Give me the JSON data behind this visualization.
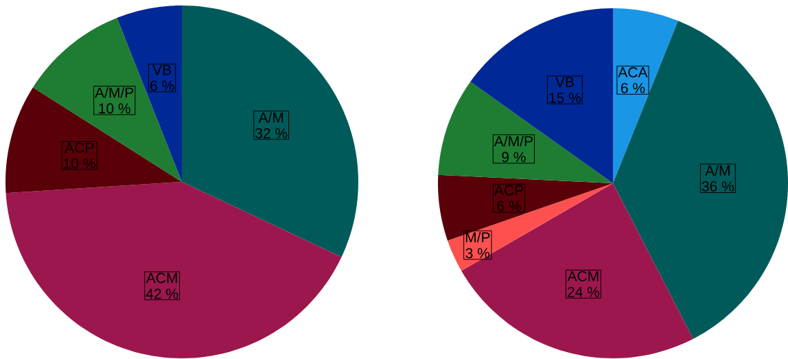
{
  "chart_data": [
    {
      "type": "pie",
      "categories": [
        "A/M",
        "ACM",
        "ACP",
        "A/M/P",
        "VB"
      ],
      "values": [
        32,
        42,
        10,
        10,
        6
      ],
      "value_labels": [
        "32 %",
        "42 %",
        "10 %",
        "10 %",
        "6 %"
      ],
      "colors": [
        "#005a5a",
        "#9c174d",
        "#5a0008",
        "#1e7d32",
        "#002896"
      ]
    },
    {
      "type": "pie",
      "categories": [
        "ACA",
        "A/M",
        "ACM",
        "M/P",
        "ACP",
        "A/M/P",
        "VB"
      ],
      "values": [
        6,
        36,
        24,
        3,
        6,
        9,
        15
      ],
      "value_labels": [
        "6 %",
        "36 %",
        "24 %",
        "3 %",
        "6 %",
        "9 %",
        "15 %"
      ],
      "colors": [
        "#1a96e6",
        "#005a5a",
        "#9c174d",
        "#ff5050",
        "#5a0008",
        "#1e7d32",
        "#002896"
      ]
    }
  ]
}
